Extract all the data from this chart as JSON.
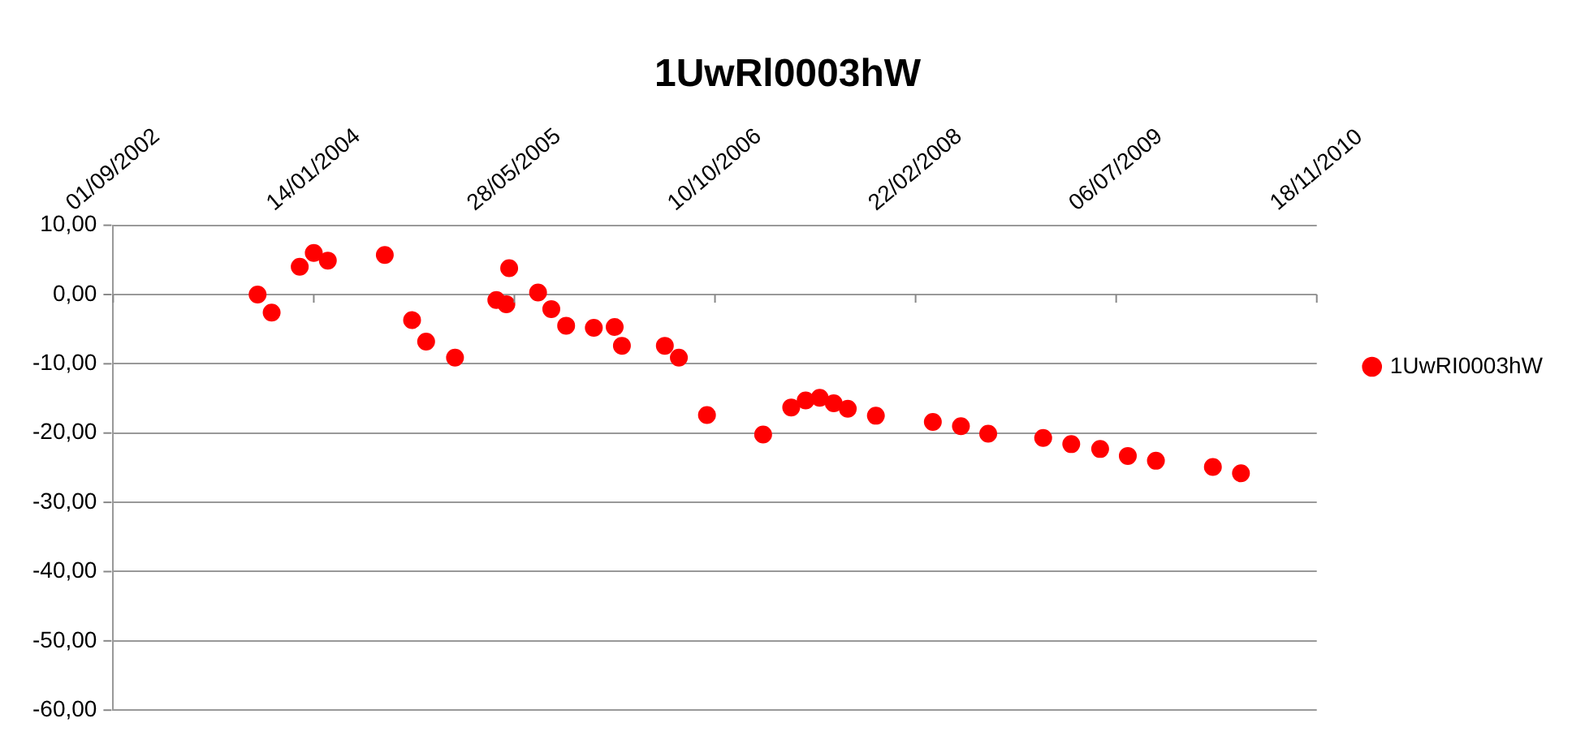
{
  "chart_data": {
    "type": "scatter",
    "title": "1UwRl0003hW",
    "x": [
      "2003-08-27",
      "2003-10-01",
      "2003-12-10",
      "2004-01-14",
      "2004-02-18",
      "2004-07-09",
      "2004-09-15",
      "2004-10-20",
      "2004-12-31",
      "2005-04-13",
      "2005-05-08",
      "2005-05-15",
      "2005-07-26",
      "2005-08-28",
      "2005-10-04",
      "2005-12-12",
      "2006-02-02",
      "2006-02-20",
      "2006-06-07",
      "2006-07-12",
      "2006-09-20",
      "2007-02-07",
      "2007-04-18",
      "2007-05-24",
      "2007-06-28",
      "2007-08-02",
      "2007-09-06",
      "2007-11-15",
      "2008-04-05",
      "2008-06-14",
      "2008-08-21",
      "2009-01-05",
      "2009-03-16",
      "2009-05-27",
      "2009-08-04",
      "2009-10-13",
      "2010-03-04",
      "2010-05-13"
    ],
    "series": [
      {
        "name": "1UwRI0003hW",
        "color": "#ff0000",
        "values": [
          0,
          -2.6,
          4.0,
          6.0,
          4.9,
          5.7,
          -3.7,
          -6.8,
          -9.1,
          -0.8,
          -1.4,
          3.8,
          0.3,
          -2.1,
          -4.5,
          -4.8,
          -4.7,
          -7.4,
          -7.4,
          -9.1,
          -17.4,
          -20.2,
          -16.3,
          -15.3,
          -14.9,
          -15.7,
          -16.5,
          -17.5,
          -18.4,
          -19.0,
          -20.1,
          -20.7,
          -21.6,
          -22.3,
          -23.3,
          -24.0,
          -24.9,
          -25.8
        ]
      }
    ],
    "xlim": [
      "2002-09-01",
      "2010-11-18"
    ],
    "xticks": [
      {
        "value": "2002-09-01",
        "label": "01/09/2002"
      },
      {
        "value": "2004-01-14",
        "label": "14/01/2004"
      },
      {
        "value": "2005-05-28",
        "label": "28/05/2005"
      },
      {
        "value": "2006-10-10",
        "label": "10/10/2006"
      },
      {
        "value": "2008-02-22",
        "label": "22/02/2008"
      },
      {
        "value": "2009-07-06",
        "label": "06/07/2009"
      },
      {
        "value": "2010-11-18",
        "label": "18/11/2010"
      }
    ],
    "ylim": [
      -60,
      10
    ],
    "yticks": [
      {
        "value": 10,
        "label": "10,00"
      },
      {
        "value": 0,
        "label": "0,00"
      },
      {
        "value": -10,
        "label": "-10,00"
      },
      {
        "value": -20,
        "label": "-20,00"
      },
      {
        "value": -30,
        "label": "-30,00"
      },
      {
        "value": -40,
        "label": "-40,00"
      },
      {
        "value": -50,
        "label": "-50,00"
      },
      {
        "value": -60,
        "label": "-60,00"
      }
    ],
    "grid": "y",
    "legend": "right",
    "marker": "circle"
  }
}
